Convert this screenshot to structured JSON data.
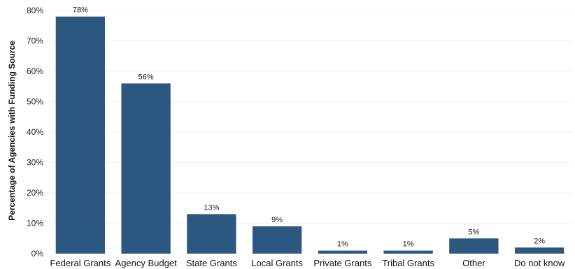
{
  "chart_data": {
    "type": "bar",
    "title": "",
    "xlabel": "",
    "ylabel": "Percentage of Agencies with Funding Source",
    "categories": [
      "Federal Grants",
      "Agency Budget",
      "State Grants",
      "Local Grants",
      "Private Grants",
      "Tribal Grants",
      "Other",
      "Do not know"
    ],
    "values": [
      78,
      56,
      13,
      9,
      1,
      1,
      5,
      2
    ],
    "data_labels": [
      "78%",
      "56%",
      "13%",
      "9%",
      "1%",
      "1%",
      "5%",
      "2%"
    ],
    "ylim": [
      0,
      80
    ],
    "y_ticks": [
      0,
      10,
      20,
      30,
      40,
      50,
      60,
      70,
      80
    ],
    "y_tick_labels": [
      "0%",
      "10%",
      "20%",
      "30%",
      "40%",
      "50%",
      "60%",
      "70%",
      "80%"
    ],
    "grid": true,
    "legend": "none",
    "bar_color": "#2c577f"
  }
}
